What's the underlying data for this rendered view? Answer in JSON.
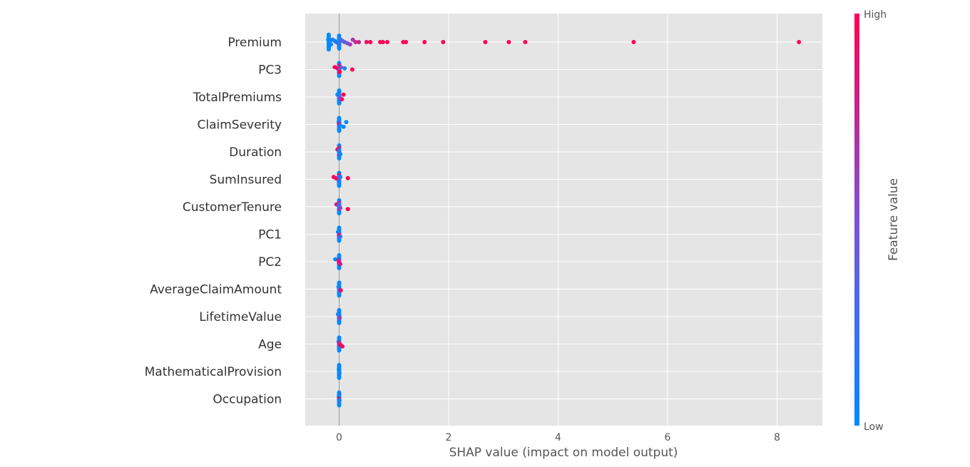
{
  "chart_data": {
    "type": "scatter",
    "subtype": "shap-beeswarm",
    "xlabel": "SHAP value (impact on model output)",
    "xticks": [
      0,
      2,
      4,
      6,
      8
    ],
    "xlim": [
      -0.62,
      8.85
    ],
    "grid": true,
    "zero_line": true,
    "colorbar": {
      "label": "Feature value",
      "high_label": "High",
      "low_label": "Low",
      "low_color": "#008bfb",
      "mid_color": "#7c52d6",
      "high_color": "#ff0052"
    },
    "features": [
      {
        "name": "Premium",
        "points": [
          {
            "x": -0.2,
            "c": 0.0
          },
          {
            "x": -0.19,
            "c": 0.0
          },
          {
            "x": -0.18,
            "c": 0.0
          },
          {
            "x": -0.17,
            "c": 0.05
          },
          {
            "x": -0.15,
            "c": 0.05
          },
          {
            "x": -0.12,
            "c": 0.1
          },
          {
            "x": -0.08,
            "c": 0.1
          },
          {
            "x": -0.05,
            "c": 0.15
          },
          {
            "x": -0.02,
            "c": 0.15
          },
          {
            "x": 0.0,
            "c": 0.2
          },
          {
            "x": 0.03,
            "c": 0.25
          },
          {
            "x": 0.06,
            "c": 0.3
          },
          {
            "x": 0.1,
            "c": 0.4
          },
          {
            "x": 0.15,
            "c": 0.5
          },
          {
            "x": 0.2,
            "c": 0.6
          },
          {
            "x": 0.25,
            "c": 0.7
          },
          {
            "x": 0.3,
            "c": 0.75
          },
          {
            "x": 0.36,
            "c": 0.8
          },
          {
            "x": 0.5,
            "c": 0.9
          },
          {
            "x": 0.57,
            "c": 1.0
          },
          {
            "x": 0.75,
            "c": 1.0
          },
          {
            "x": 0.8,
            "c": 1.0
          },
          {
            "x": 0.88,
            "c": 1.0
          },
          {
            "x": 1.17,
            "c": 1.0
          },
          {
            "x": 1.22,
            "c": 1.0
          },
          {
            "x": 1.56,
            "c": 1.0
          },
          {
            "x": 1.9,
            "c": 1.0
          },
          {
            "x": 2.67,
            "c": 1.0
          },
          {
            "x": 3.1,
            "c": 1.0
          },
          {
            "x": 3.4,
            "c": 1.0
          },
          {
            "x": 5.38,
            "c": 1.0
          },
          {
            "x": 8.4,
            "c": 1.0
          }
        ]
      },
      {
        "name": "PC3",
        "points": [
          {
            "x": -0.08,
            "c": 1.0
          },
          {
            "x": -0.03,
            "c": 0.9
          },
          {
            "x": 0.0,
            "c": 0.8
          },
          {
            "x": 0.0,
            "c": 0.5
          },
          {
            "x": 0.01,
            "c": 1.0
          },
          {
            "x": 0.03,
            "c": 0.6
          },
          {
            "x": 0.1,
            "c": 0.0
          },
          {
            "x": 0.24,
            "c": 1.0
          }
        ]
      },
      {
        "name": "TotalPremiums",
        "points": [
          {
            "x": -0.03,
            "c": 0.0
          },
          {
            "x": 0.0,
            "c": 0.1
          },
          {
            "x": 0.0,
            "c": 0.3
          },
          {
            "x": 0.02,
            "c": 0.5
          },
          {
            "x": 0.05,
            "c": 0.9
          },
          {
            "x": 0.08,
            "c": 1.0
          }
        ]
      },
      {
        "name": "ClaimSeverity",
        "points": [
          {
            "x": -0.01,
            "c": 0.0
          },
          {
            "x": 0.0,
            "c": 0.4
          },
          {
            "x": 0.0,
            "c": 0.9
          },
          {
            "x": 0.02,
            "c": 0.0
          },
          {
            "x": 0.08,
            "c": 0.0
          },
          {
            "x": 0.13,
            "c": 0.0
          }
        ]
      },
      {
        "name": "Duration",
        "points": [
          {
            "x": -0.03,
            "c": 1.0
          },
          {
            "x": 0.0,
            "c": 0.0
          },
          {
            "x": 0.0,
            "c": 0.1
          },
          {
            "x": 0.01,
            "c": 0.2
          },
          {
            "x": 0.02,
            "c": 0.0
          }
        ]
      },
      {
        "name": "SumInsured",
        "points": [
          {
            "x": -0.1,
            "c": 1.0
          },
          {
            "x": -0.06,
            "c": 0.9
          },
          {
            "x": -0.02,
            "c": 1.0
          },
          {
            "x": 0.0,
            "c": 0.3
          },
          {
            "x": 0.0,
            "c": 0.0
          },
          {
            "x": 0.02,
            "c": 0.1
          },
          {
            "x": 0.16,
            "c": 1.0
          }
        ]
      },
      {
        "name": "CustomerTenure",
        "points": [
          {
            "x": -0.05,
            "c": 0.8
          },
          {
            "x": 0.0,
            "c": 0.4
          },
          {
            "x": 0.0,
            "c": 0.0
          },
          {
            "x": 0.02,
            "c": 0.6
          },
          {
            "x": 0.16,
            "c": 1.0
          }
        ]
      },
      {
        "name": "PC1",
        "points": [
          {
            "x": -0.02,
            "c": 0.0
          },
          {
            "x": 0.0,
            "c": 0.0
          },
          {
            "x": 0.0,
            "c": 0.5
          },
          {
            "x": 0.0,
            "c": 1.0
          },
          {
            "x": 0.02,
            "c": 0.2
          }
        ]
      },
      {
        "name": "PC2",
        "points": [
          {
            "x": -0.07,
            "c": 0.0
          },
          {
            "x": -0.01,
            "c": 0.9
          },
          {
            "x": 0.0,
            "c": 0.7
          },
          {
            "x": 0.0,
            "c": 1.0
          },
          {
            "x": 0.02,
            "c": 0.8
          }
        ]
      },
      {
        "name": "AverageClaimAmount",
        "points": [
          {
            "x": -0.01,
            "c": 0.0
          },
          {
            "x": 0.0,
            "c": 0.0
          },
          {
            "x": 0.0,
            "c": 0.3
          },
          {
            "x": 0.03,
            "c": 0.9
          }
        ]
      },
      {
        "name": "LifetimeValue",
        "points": [
          {
            "x": -0.02,
            "c": 0.0
          },
          {
            "x": 0.0,
            "c": 0.0
          },
          {
            "x": 0.0,
            "c": 0.2
          },
          {
            "x": 0.01,
            "c": 0.6
          }
        ]
      },
      {
        "name": "Age",
        "points": [
          {
            "x": -0.01,
            "c": 0.0
          },
          {
            "x": 0.0,
            "c": 0.9
          },
          {
            "x": 0.0,
            "c": 0.7
          },
          {
            "x": 0.03,
            "c": 1.0
          },
          {
            "x": 0.06,
            "c": 0.9
          }
        ]
      },
      {
        "name": "MathematicalProvision",
        "points": [
          {
            "x": -0.005,
            "c": 0.0
          },
          {
            "x": 0.0,
            "c": 0.0
          },
          {
            "x": 0.0,
            "c": 0.05
          },
          {
            "x": 0.005,
            "c": 0.0
          }
        ]
      },
      {
        "name": "Occupation",
        "points": [
          {
            "x": -0.005,
            "c": 0.0
          },
          {
            "x": 0.0,
            "c": 0.0
          },
          {
            "x": 0.0,
            "c": 1.0
          },
          {
            "x": 0.005,
            "c": 0.1
          }
        ]
      }
    ]
  }
}
